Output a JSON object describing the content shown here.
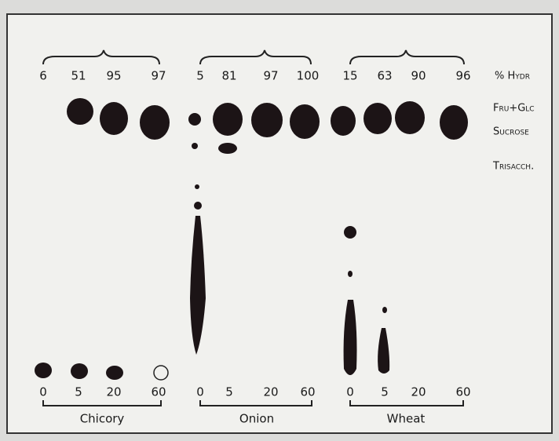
{
  "hydrolysis_label": "% Hydr",
  "spot_labels": [
    "Fru+Glc",
    "Sucrose",
    "Trisacch."
  ],
  "groups": [
    {
      "name": "Chicory",
      "hydrolysis": [
        6,
        51,
        95,
        97
      ],
      "times": [
        0,
        5,
        20,
        60
      ]
    },
    {
      "name": "Onion",
      "hydrolysis": [
        5,
        81,
        97,
        100
      ],
      "times": [
        0,
        5,
        20,
        60
      ]
    },
    {
      "name": "Wheat",
      "hydrolysis": [
        15,
        63,
        90,
        96
      ],
      "times": [
        0,
        5,
        20,
        60
      ]
    }
  ]
}
